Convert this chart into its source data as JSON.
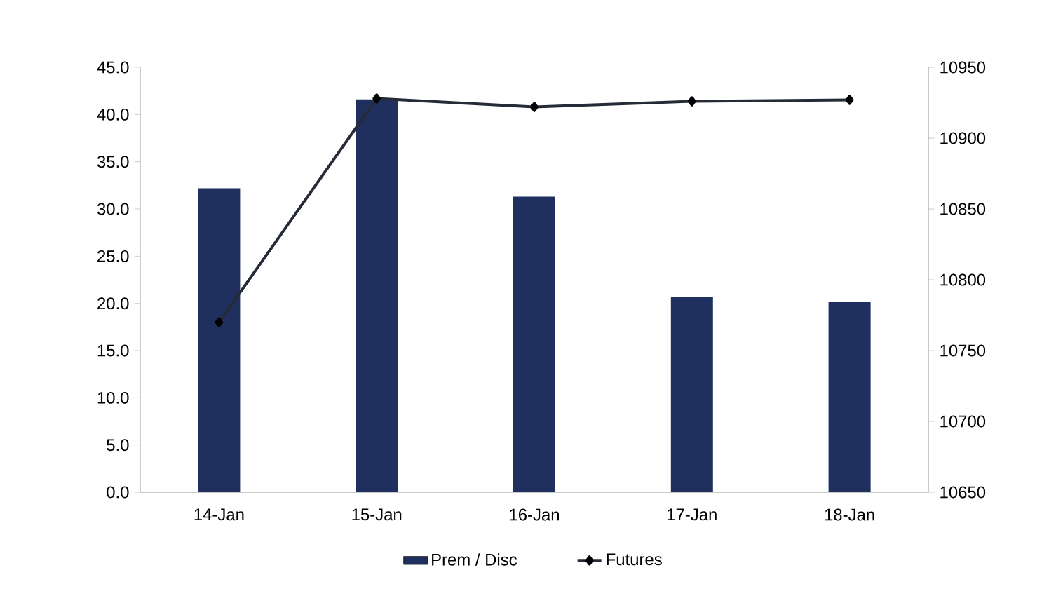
{
  "chart_data": {
    "type": "bar",
    "categories": [
      "14-Jan",
      "15-Jan",
      "16-Jan",
      "17-Jan",
      "18-Jan"
    ],
    "series": [
      {
        "name": "Prem / Disc",
        "color": "#1f305e",
        "values": [
          32.2,
          41.6,
          31.3,
          20.7,
          20.2
        ]
      },
      {
        "name": "Futures",
        "type": "line",
        "axis": "y2",
        "color": "#262b38",
        "marker": "diamond",
        "values": [
          10770,
          10928,
          10922,
          10926,
          10927
        ]
      }
    ],
    "ylim": [
      0,
      45
    ],
    "yticks": [
      {
        "value": 0,
        "label": "0.0"
      },
      {
        "value": 5,
        "label": "5.0"
      },
      {
        "value": 10,
        "label": "10.0"
      },
      {
        "value": 15,
        "label": "15.0"
      },
      {
        "value": 20,
        "label": "20.0"
      },
      {
        "value": 25,
        "label": "25.0"
      },
      {
        "value": 30,
        "label": "30.0"
      },
      {
        "value": 35,
        "label": "35.0"
      },
      {
        "value": 40,
        "label": "40.0"
      },
      {
        "value": 45,
        "label": "45.0"
      }
    ],
    "y2lim": [
      10650,
      10950
    ],
    "y2ticks": [
      10650,
      10700,
      10750,
      10800,
      10850,
      10900,
      10950
    ],
    "legend": "bottom",
    "grid": false
  }
}
